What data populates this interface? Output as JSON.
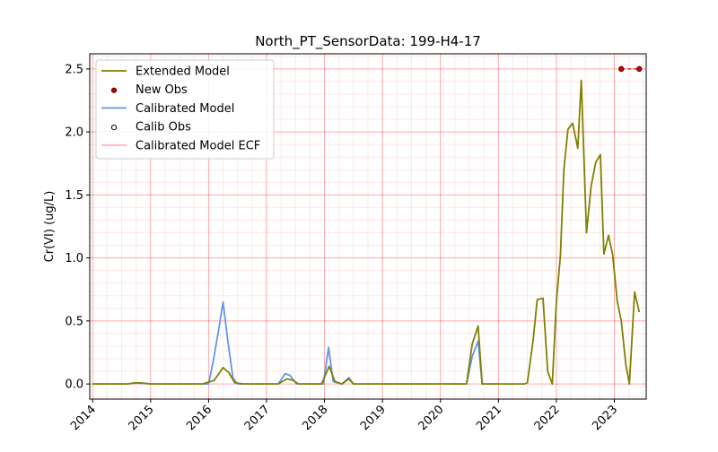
{
  "chart_data": {
    "type": "line",
    "title": "North_PT_SensorData: 199-H4-17",
    "xlabel": "",
    "ylabel": "Cr(VI) (ug/L)",
    "xlim": [
      2013.95,
      2023.55
    ],
    "ylim": [
      -0.12,
      2.62
    ],
    "grid": true,
    "legend_position": "top-left",
    "x_ticks": [
      "2014",
      "2015",
      "2016",
      "2017",
      "2018",
      "2019",
      "2020",
      "2021",
      "2022",
      "2023"
    ],
    "y_ticks": [
      "0.0",
      "0.5",
      "1.0",
      "1.5",
      "2.0",
      "2.5"
    ],
    "series": [
      {
        "name": "Extended Model",
        "kind": "line",
        "color": "#808000",
        "points": [
          [
            2014.0,
            0.0
          ],
          [
            2014.6,
            0.0
          ],
          [
            2014.75,
            0.01
          ],
          [
            2014.9,
            0.005
          ],
          [
            2015.0,
            0.0
          ],
          [
            2015.9,
            0.0
          ],
          [
            2016.1,
            0.03
          ],
          [
            2016.25,
            0.13
          ],
          [
            2016.35,
            0.09
          ],
          [
            2016.45,
            0.01
          ],
          [
            2016.6,
            0.0
          ],
          [
            2017.2,
            0.0
          ],
          [
            2017.35,
            0.04
          ],
          [
            2017.45,
            0.03
          ],
          [
            2017.55,
            0.0
          ],
          [
            2017.95,
            0.0
          ],
          [
            2018.08,
            0.14
          ],
          [
            2018.18,
            0.02
          ],
          [
            2018.3,
            0.0
          ],
          [
            2018.42,
            0.04
          ],
          [
            2018.5,
            0.0
          ],
          [
            2020.45,
            0.0
          ],
          [
            2020.55,
            0.32
          ],
          [
            2020.65,
            0.46
          ],
          [
            2020.72,
            0.0
          ],
          [
            2021.45,
            0.0
          ],
          [
            2021.5,
            0.01
          ],
          [
            2021.6,
            0.35
          ],
          [
            2021.67,
            0.67
          ],
          [
            2021.77,
            0.68
          ],
          [
            2021.85,
            0.1
          ],
          [
            2021.93,
            0.0
          ],
          [
            2022.0,
            0.65
          ],
          [
            2022.07,
            1.02
          ],
          [
            2022.13,
            1.7
          ],
          [
            2022.2,
            2.02
          ],
          [
            2022.28,
            2.07
          ],
          [
            2022.37,
            1.87
          ],
          [
            2022.43,
            2.41
          ],
          [
            2022.52,
            1.2
          ],
          [
            2022.6,
            1.57
          ],
          [
            2022.68,
            1.76
          ],
          [
            2022.76,
            1.82
          ],
          [
            2022.82,
            1.03
          ],
          [
            2022.9,
            1.18
          ],
          [
            2022.97,
            1.03
          ],
          [
            2023.05,
            0.66
          ],
          [
            2023.12,
            0.5
          ],
          [
            2023.2,
            0.15
          ],
          [
            2023.26,
            0.0
          ],
          [
            2023.35,
            0.73
          ],
          [
            2023.43,
            0.57
          ]
        ]
      },
      {
        "name": "New Obs",
        "kind": "scatter",
        "color": "#cc0000",
        "points": [
          [
            2023.12,
            2.5
          ],
          [
            2023.43,
            2.5
          ]
        ]
      },
      {
        "name": "Calibrated Model",
        "kind": "line",
        "color": "#6495ed",
        "points": [
          [
            2014.0,
            0.0
          ],
          [
            2014.6,
            0.0
          ],
          [
            2014.75,
            0.01
          ],
          [
            2014.9,
            0.005
          ],
          [
            2015.0,
            0.0
          ],
          [
            2016.0,
            0.0
          ],
          [
            2016.08,
            0.18
          ],
          [
            2016.17,
            0.42
          ],
          [
            2016.25,
            0.65
          ],
          [
            2016.33,
            0.35
          ],
          [
            2016.42,
            0.05
          ],
          [
            2016.5,
            0.0
          ],
          [
            2017.2,
            0.0
          ],
          [
            2017.32,
            0.08
          ],
          [
            2017.4,
            0.07
          ],
          [
            2017.52,
            0.0
          ],
          [
            2017.98,
            0.0
          ],
          [
            2018.07,
            0.29
          ],
          [
            2018.15,
            0.02
          ],
          [
            2018.3,
            0.0
          ],
          [
            2018.42,
            0.05
          ],
          [
            2018.5,
            0.0
          ],
          [
            2020.45,
            0.0
          ],
          [
            2020.55,
            0.22
          ],
          [
            2020.65,
            0.34
          ],
          [
            2020.72,
            0.0
          ],
          [
            2021.0,
            0.0
          ]
        ]
      },
      {
        "name": "Calib Obs",
        "kind": "scatter",
        "color": "#000000",
        "points": []
      },
      {
        "name": "Calibrated Model ECF",
        "kind": "line",
        "color": "#ffb6c1",
        "points": []
      }
    ]
  }
}
